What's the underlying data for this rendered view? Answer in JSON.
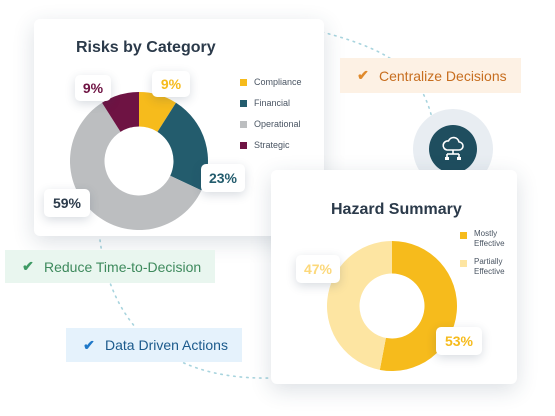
{
  "risks_card": {
    "title": "Risks by Category",
    "legend": [
      {
        "label": "Compliance",
        "color": "#f6bb1c"
      },
      {
        "label": "Financial",
        "color": "#235c6d"
      },
      {
        "label": "Operational",
        "color": "#bcbec0"
      },
      {
        "label": "Strategic",
        "color": "#6e1343"
      }
    ],
    "labels": {
      "compliance": "9%",
      "financial": "23%",
      "operational": "59%",
      "strategic": "9%"
    }
  },
  "hazard_card": {
    "title": "Hazard Summary",
    "legend": [
      {
        "label": "Mostly Effective",
        "color": "#f6bb1c"
      },
      {
        "label": "Partially Effective",
        "color": "#fde5a2"
      }
    ],
    "labels": {
      "mostly": "53%",
      "partially": "47%"
    }
  },
  "benefits": {
    "centralize": "Centralize Decisions",
    "reduce": "Reduce Time-to-Decision",
    "data_driven": "Data Driven Actions"
  },
  "icons": {
    "check": "✔",
    "check_names": [
      "checkmark-icon"
    ],
    "cloud": "cloud-network-icon"
  },
  "colors": {
    "title": "#2b3a4a",
    "centralize_text": "#c76e1f",
    "reduce_text": "#3e8a5d",
    "data_text": "#1b5a8c",
    "cloud_badge": "#1f4e5f"
  },
  "chart_data": [
    {
      "type": "pie",
      "title": "Risks by Category",
      "categories": [
        "Compliance",
        "Financial",
        "Operational",
        "Strategic"
      ],
      "values": [
        9,
        23,
        59,
        9
      ],
      "colors": [
        "#f6bb1c",
        "#235c6d",
        "#bcbec0",
        "#6e1343"
      ],
      "donut": true,
      "legend_position": "right"
    },
    {
      "type": "pie",
      "title": "Hazard Summary",
      "categories": [
        "Mostly Effective",
        "Partially Effective"
      ],
      "values": [
        53,
        47
      ],
      "colors": [
        "#f6bb1c",
        "#fde5a2"
      ],
      "donut": true,
      "legend_position": "right"
    }
  ]
}
